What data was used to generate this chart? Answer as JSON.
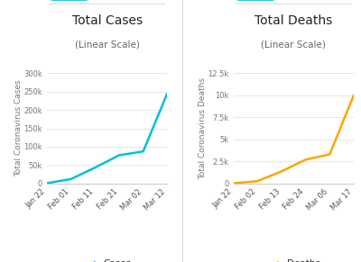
{
  "cases_dates": [
    "Jan 22",
    "Feb 01",
    "Feb 11",
    "Feb 21",
    "Mar 02",
    "Mar 12"
  ],
  "cases_values": [
    548,
    11821,
    43103,
    76769,
    87137,
    245484
  ],
  "deaths_dates": [
    "Jan 22",
    "Feb 02",
    "Feb 13",
    "Feb 24",
    "Mar 06",
    "Mar 17"
  ],
  "deaths_values": [
    17,
    259,
    1369,
    2699,
    3300,
    10030
  ],
  "cases_color": "#00c0e0",
  "deaths_color": "#FFA500",
  "cases_title": "Total Cases",
  "deaths_title": "Total Deaths",
  "subtitle": "(Linear Scale)",
  "cases_ylabel": "Total Coronavirus Cases",
  "deaths_ylabel": "Total Coronavirus Deaths",
  "cases_ylim": [
    0,
    300000
  ],
  "deaths_ylim": [
    0,
    12500
  ],
  "cases_yticks": [
    0,
    50000,
    100000,
    150000,
    200000,
    250000,
    300000
  ],
  "cases_ytick_labels": [
    "0",
    "50k",
    "100k",
    "150k",
    "200k",
    "250k",
    "300k"
  ],
  "deaths_yticks": [
    0,
    2500,
    5000,
    7500,
    10000,
    12500
  ],
  "deaths_ytick_labels": [
    "0",
    "2.5k",
    "5k",
    "7.5k",
    "10k",
    "12.5k"
  ],
  "tab_color_active": "#00c0e0",
  "bg_color": "#ffffff",
  "grid_color": "#e8e8e8",
  "title_fontsize": 10,
  "subtitle_fontsize": 7.5,
  "tick_fontsize": 6,
  "ylabel_fontsize": 6.5,
  "legend_fontsize": 7.5,
  "tab_fontsize": 7
}
